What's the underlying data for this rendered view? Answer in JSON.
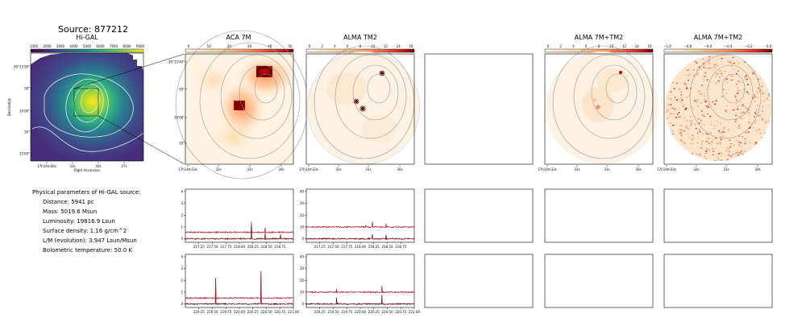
{
  "suptitle": "Source: 877212",
  "params": {
    "heading": "Physical parameters of Hi-GAL source:",
    "distance": "Distance: 5941 pc",
    "mass": "Mass: 5019.6 Msun",
    "luminosity": "Luminosity: 19816.9 Lsun",
    "surface_density": "Surface density: 1.16 g/cm^2",
    "lm": "L/M (evolution): 3.947 Lsun/Msun",
    "tbol": "Bolometric temperature: 50.0 K"
  },
  "colors": {
    "viridis": [
      "#440154",
      "#3b528b",
      "#21908d",
      "#5dc963",
      "#fde725"
    ],
    "orrd": [
      "#fff7ec",
      "#fdd49e",
      "#fc8d59",
      "#d7301f",
      "#7f0000"
    ],
    "spectrum_main": "#b2182b",
    "spectrum_dark": "#67000d",
    "contour": "#9a9a9a"
  },
  "chart_data": [
    {
      "type": "heatmap",
      "title": "Hi-GAL",
      "colorbar_ticks": [
        "1000",
        "2000",
        "3000",
        "4000",
        "5000",
        "6000",
        "7000",
        "8000",
        "9000"
      ],
      "xlabel": "Right Ascension",
      "ylabel": "Declination",
      "x_ticks": [
        "17h14m36s",
        "33s",
        "30s",
        "27s"
      ],
      "y_ticks": [
        "-39°13'00\"",
        "30\"",
        "14'00\"",
        "30\"",
        "15'00\""
      ]
    },
    {
      "type": "heatmap",
      "title": "ACA 7M",
      "colorbar_ticks": [
        "0",
        "10",
        "20",
        "30",
        "40",
        "50"
      ],
      "x_ticks": [
        "17h14m33s",
        "32s",
        "31s",
        "30s"
      ],
      "y_ticks": [
        "-39°13'40\"",
        "50\"",
        "14'00\"",
        "10\""
      ]
    },
    {
      "type": "heatmap",
      "title": "ALMA TM2",
      "colorbar_ticks": [
        "0",
        "2",
        "4",
        "6",
        "8",
        "10",
        "12",
        "14",
        "16"
      ],
      "x_ticks": [
        "17h14m33s",
        "32s",
        "31s",
        "30s"
      ]
    },
    {
      "type": "heatmap",
      "title": "ALMA 7M+TM2",
      "colorbar_ticks": [
        "0",
        "2",
        "4",
        "6",
        "8",
        "10",
        "12",
        "14",
        "16"
      ],
      "x_ticks": [
        "17h14m33s",
        "32s",
        "31s",
        "30s"
      ]
    },
    {
      "type": "heatmap",
      "title": "ALMA 7M+TM2",
      "colorbar_ticks": [
        "−1.0",
        "−0.8",
        "−0.6",
        "−0.4",
        "−0.2",
        "0.0"
      ],
      "x_ticks": [
        "17h14m33s",
        "32s",
        "31s",
        "30s"
      ]
    },
    {
      "type": "line",
      "panel": "ACA 7M spectrum, upper band",
      "x_ticks": [
        "217.25",
        "217.50",
        "217.75",
        "218.00",
        "218.25",
        "218.50",
        "218.75"
      ],
      "xlim": [
        217.0,
        219.0
      ],
      "y_ticks": [
        "0",
        "1",
        "2",
        "3",
        "4"
      ],
      "ylim": [
        -0.3,
        4.2
      ],
      "series": [
        {
          "offset": 0.0,
          "peaks": [
            [
              218.22,
              1.2
            ],
            [
              218.48,
              0.55
            ],
            [
              218.76,
              0.4
            ]
          ]
        },
        {
          "offset": 0.55,
          "peaks": [
            [
              218.22,
              0.9
            ],
            [
              218.48,
              0.35
            ]
          ]
        }
      ]
    },
    {
      "type": "line",
      "panel": "ALMA TM2 spectrum, upper band",
      "x_ticks": [
        "217.25",
        "217.50",
        "217.75",
        "218.00",
        "218.25",
        "218.50",
        "218.75"
      ],
      "xlim": [
        217.0,
        219.0
      ],
      "y_ticks": [
        "0",
        "10",
        "20",
        "30",
        "40"
      ],
      "ylim": [
        -3,
        42
      ],
      "series": [
        {
          "offset": 0.0,
          "peaks": [
            [
              218.22,
              4
            ],
            [
              218.48,
              3
            ]
          ]
        },
        {
          "offset": 10.0,
          "peaks": [
            [
              218.22,
              4
            ],
            [
              218.48,
              3
            ],
            [
              218.1,
              2
            ]
          ]
        }
      ]
    },
    {
      "type": "line",
      "panel": "ACA 7M spectrum, lower band",
      "x_ticks": [
        "219.25",
        "219.50",
        "219.75",
        "220.00",
        "220.25",
        "220.50",
        "220.75",
        "221.00"
      ],
      "xlim": [
        219.0,
        221.0
      ],
      "y_ticks": [
        "0",
        "1",
        "2",
        "3",
        "4"
      ],
      "ylim": [
        -0.3,
        4.2
      ],
      "series": [
        {
          "offset": 0.0,
          "peaks": [
            [
              219.56,
              2.2
            ],
            [
              220.4,
              2.8
            ]
          ]
        },
        {
          "offset": 0.5,
          "peaks": [
            [
              219.56,
              1.5
            ],
            [
              220.4,
              2.2
            ]
          ]
        }
      ]
    },
    {
      "type": "line",
      "panel": "ALMA TM2 spectrum, lower band",
      "x_ticks": [
        "219.25",
        "219.50",
        "219.75",
        "220.00",
        "220.25",
        "220.50",
        "220.75",
        "221.00"
      ],
      "xlim": [
        219.0,
        221.0
      ],
      "y_ticks": [
        "0",
        "10",
        "20",
        "30",
        "40"
      ],
      "ylim": [
        -3,
        42
      ],
      "series": [
        {
          "offset": 0.0,
          "peaks": [
            [
              219.56,
              5
            ],
            [
              220.4,
              8
            ]
          ]
        },
        {
          "offset": 10.0,
          "peaks": [
            [
              219.56,
              3
            ],
            [
              220.4,
              6
            ]
          ]
        }
      ]
    }
  ]
}
